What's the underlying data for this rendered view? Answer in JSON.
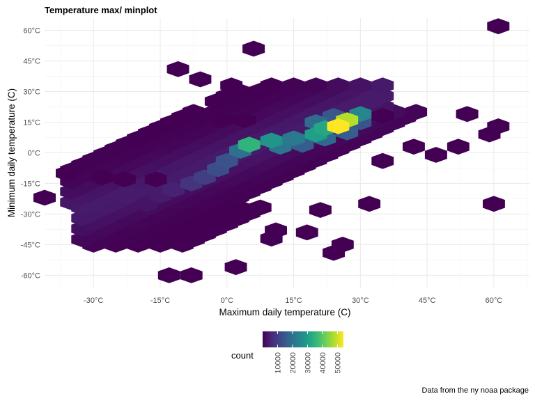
{
  "title": "Temperature max/ minplot",
  "caption": "Data from the ny noaa package",
  "chart_data": {
    "type": "heatmap",
    "subtype": "hexbin",
    "title": "Temperature max/ minplot",
    "xlabel": "Maximum daily temperature (C)",
    "ylabel": "Minimum daily temperature (C)",
    "xlim": [
      -41,
      68
    ],
    "ylim": [
      -66,
      66
    ],
    "x_ticks": [
      -30,
      -15,
      0,
      15,
      30,
      45,
      60
    ],
    "x_tick_labels": [
      "-30°C",
      "-15°C",
      "0°C",
      "15°C",
      "30°C",
      "45°C",
      "60°C"
    ],
    "y_ticks": [
      -60,
      -45,
      -30,
      -15,
      0,
      15,
      30,
      45,
      60
    ],
    "y_tick_labels": [
      "-60°C",
      "-45°C",
      "-30°C",
      "-15°C",
      "0°C",
      "15°C",
      "30°C",
      "45°C",
      "60°C"
    ],
    "grid": true,
    "legend": {
      "title": "count",
      "position": "bottom",
      "colormap": "viridis",
      "ticks": [
        10000,
        20000,
        30000,
        40000,
        50000
      ],
      "tick_labels": [
        "10000",
        "20000",
        "30000",
        "40000",
        "50000"
      ],
      "range": [
        1,
        54000
      ]
    },
    "colors": [
      "#440154",
      "#482878",
      "#3e4989",
      "#31688e",
      "#26828e",
      "#1f9e89",
      "#35b779",
      "#6ece58",
      "#b5de2b",
      "#fde725"
    ],
    "bins": [
      {
        "x": 61,
        "y": 62,
        "count": 1
      },
      {
        "x": 6,
        "y": 51,
        "count": 1
      },
      {
        "x": -11,
        "y": 41,
        "count": 1
      },
      {
        "x": -6,
        "y": 36,
        "count": 1
      },
      {
        "x": 1,
        "y": 33,
        "count": 1
      },
      {
        "x": -41,
        "y": -22,
        "count": 1
      },
      {
        "x": -1,
        "y": 16,
        "count": 1
      },
      {
        "x": 4,
        "y": 16,
        "count": 1
      },
      {
        "x": 35,
        "y": 18,
        "count": 1
      },
      {
        "x": 54,
        "y": 19,
        "count": 1
      },
      {
        "x": 59,
        "y": 9,
        "count": 1
      },
      {
        "x": 61,
        "y": 13,
        "count": 1
      },
      {
        "x": 42,
        "y": 3,
        "count": 1
      },
      {
        "x": 52,
        "y": 3,
        "count": 1
      },
      {
        "x": 47,
        "y": -1,
        "count": 1
      },
      {
        "x": 35,
        "y": -4,
        "count": 1
      },
      {
        "x": 60,
        "y": -25,
        "count": 1
      },
      {
        "x": 32,
        "y": -25,
        "count": 1
      },
      {
        "x": 21,
        "y": -28,
        "count": 1
      },
      {
        "x": 18,
        "y": -39,
        "count": 1
      },
      {
        "x": 26,
        "y": -45,
        "count": 1
      },
      {
        "x": 24,
        "y": -49,
        "count": 1
      },
      {
        "x": 11,
        "y": -38,
        "count": 1
      },
      {
        "x": 10,
        "y": -42,
        "count": 1
      },
      {
        "x": 2,
        "y": -56,
        "count": 1
      },
      {
        "x": -13,
        "y": -60,
        "count": 1
      },
      {
        "x": -8,
        "y": -60,
        "count": 1
      },
      {
        "x": -36,
        "y": -10,
        "count": 1
      },
      {
        "x": -28,
        "y": -12,
        "count": 1
      },
      {
        "x": -23,
        "y": -13,
        "count": 1
      },
      {
        "x": -16,
        "y": -13,
        "count": 1
      },
      {
        "x": 5,
        "y": 4,
        "count": 35000
      },
      {
        "x": 10,
        "y": 6,
        "count": 28000
      },
      {
        "x": 15,
        "y": 7,
        "count": 22000
      },
      {
        "x": 20,
        "y": 9,
        "count": 30000
      },
      {
        "x": 22,
        "y": 12,
        "count": 32000
      },
      {
        "x": 25,
        "y": 13,
        "count": 54000
      },
      {
        "x": 27,
        "y": 16,
        "count": 48000
      },
      {
        "x": 30,
        "y": 19,
        "count": 25000
      },
      {
        "x": 3,
        "y": 1,
        "count": 20000
      },
      {
        "x": 12,
        "y": 3,
        "count": 21000
      },
      {
        "x": 17,
        "y": 4,
        "count": 16000
      },
      {
        "x": 22,
        "y": 7,
        "count": 18000
      },
      {
        "x": 27,
        "y": 10,
        "count": 16000
      },
      {
        "x": 20,
        "y": 15,
        "count": 19000
      },
      {
        "x": 24,
        "y": 18,
        "count": 15000
      },
      {
        "x": 30,
        "y": 15,
        "count": 14000
      },
      {
        "x": 0,
        "y": -4,
        "count": 14000
      },
      {
        "x": -2,
        "y": -8,
        "count": 13000
      },
      {
        "x": -5,
        "y": -12,
        "count": 10000
      },
      {
        "x": -8,
        "y": -15,
        "count": 8000
      },
      {
        "x": -12,
        "y": -18,
        "count": 5000
      },
      {
        "x": -15,
        "y": -21,
        "count": 4000
      },
      {
        "x": -18,
        "y": -25,
        "count": 3000
      }
    ]
  }
}
